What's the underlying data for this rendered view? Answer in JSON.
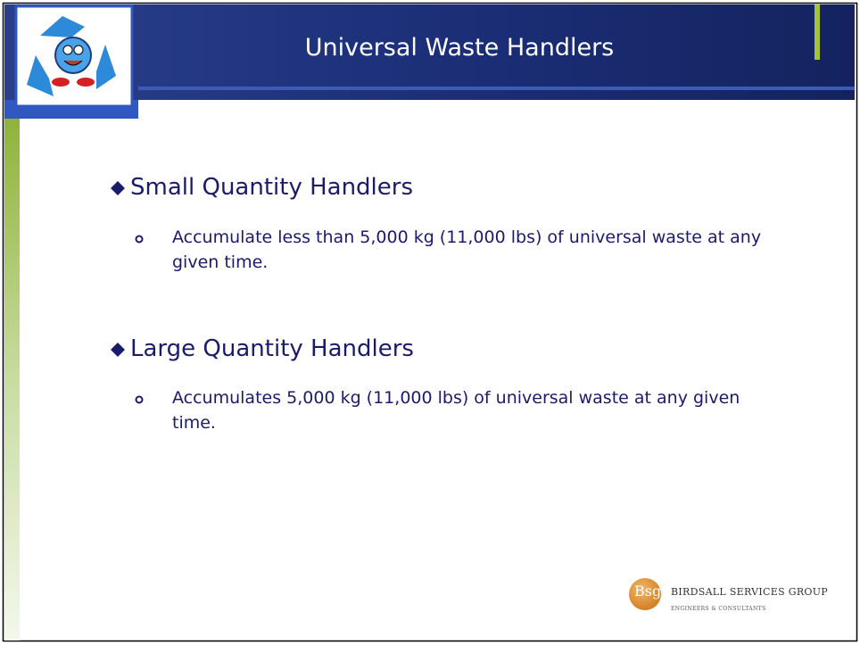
{
  "header": {
    "title": "Universal Waste Handlers"
  },
  "sections": [
    {
      "heading": "Small Quantity Handlers",
      "items": [
        "Accumulate less than 5,000 kg (11,000 lbs) of universal waste at any given time."
      ]
    },
    {
      "heading": "Large Quantity Handlers",
      "items": [
        "Accumulates 5,000 kg (11,000 lbs) of universal waste at any given time."
      ]
    }
  ],
  "footer": {
    "monogram": "Bsg",
    "company": "BIRDSALL SERVICES GROUP",
    "tagline": "ENGINEERS & CONSULTANTS"
  }
}
